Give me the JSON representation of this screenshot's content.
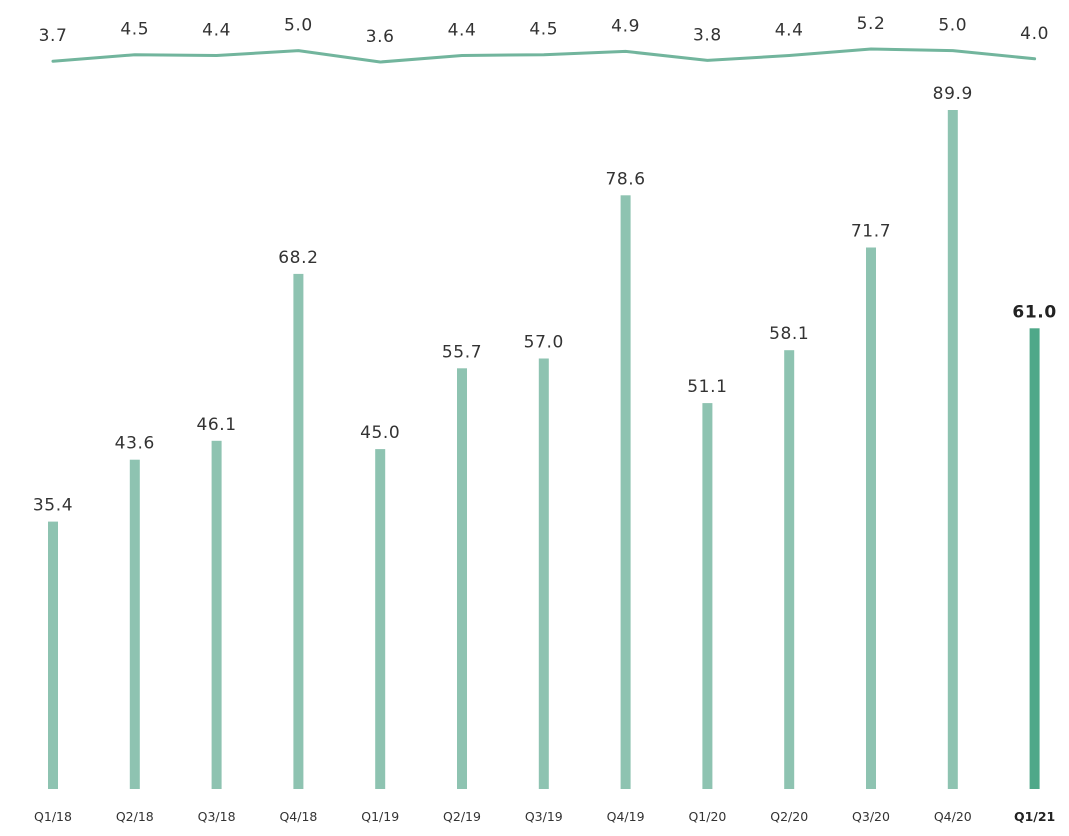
{
  "chart_data": {
    "type": "bar",
    "categories": [
      "Q1/18",
      "Q2/18",
      "Q3/18",
      "Q4/18",
      "Q1/19",
      "Q2/19",
      "Q3/19",
      "Q4/19",
      "Q1/20",
      "Q2/20",
      "Q3/20",
      "Q4/20",
      "Q1/21"
    ],
    "series": [
      {
        "type": "bar",
        "values": [
          35.4,
          43.6,
          46.1,
          68.2,
          45.0,
          55.7,
          57.0,
          78.6,
          51.1,
          58.1,
          71.7,
          89.9,
          61.0
        ],
        "value_labels": [
          "35.4",
          "43.6",
          "46.1",
          "68.2",
          "45.0",
          "55.7",
          "57.0",
          "78.6",
          "51.1",
          "58.1",
          "71.7",
          "89.9",
          "61.0"
        ],
        "color": "#8ec3b1",
        "highlight_color": "#4fa889",
        "highlight_index": 12
      },
      {
        "type": "line",
        "values": [
          3.7,
          4.5,
          4.4,
          5.0,
          3.6,
          4.4,
          4.5,
          4.9,
          3.8,
          4.4,
          5.2,
          5.0,
          4.0
        ],
        "value_labels": [
          "3.7",
          "4.5",
          "4.4",
          "5.0",
          "3.6",
          "4.4",
          "4.5",
          "4.9",
          "3.8",
          "4.4",
          "5.2",
          "5.0",
          "4.0"
        ],
        "color": "#72b59d"
      }
    ],
    "title": "",
    "xlabel": "",
    "ylabel": "",
    "ylim": [
      0,
      89.9
    ],
    "grid": false,
    "legend": "none"
  }
}
